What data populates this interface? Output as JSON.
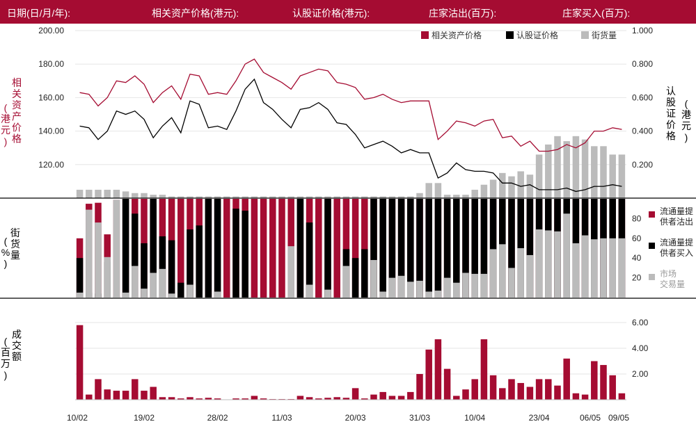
{
  "header": {
    "date_label": "日期(日/月/年):",
    "underlying_label": "相关资产价格(港元):",
    "warrant_label": "认股证价格(港元):",
    "mm_sell_label": "庄家沽出(百万):",
    "mm_buy_label": "庄家买入(百万):"
  },
  "legend": {
    "underlying": "相关资产价格",
    "warrant": "认股证价格",
    "street": "街货量"
  },
  "colors": {
    "underlying": "#a50c32",
    "warrant": "#000000",
    "street": "#bbbbbb",
    "header_bg": "#a50c32"
  },
  "chart_data": [
    {
      "type": "line",
      "left_axis_label": "相关资产价格 (港元)",
      "right_axis_label": "认股证价格 (港元)",
      "left_ticks": [
        "120.00",
        "140.00",
        "160.00",
        "180.00",
        "200.00"
      ],
      "right_ticks": [
        "0.200",
        "0.400",
        "0.600",
        "0.800",
        "1.000"
      ],
      "left_ylim": [
        100,
        200
      ],
      "right_ylim": [
        0,
        1.0
      ],
      "x_ticks": [
        "10/02",
        "19/02",
        "28/02",
        "11/03",
        "20/03",
        "31/03",
        "10/04",
        "23/04",
        "06/05",
        "09/05"
      ],
      "series": [
        {
          "name": "相关资产价格",
          "axis": "left",
          "values": [
            163,
            162,
            155,
            160,
            170,
            169,
            173,
            168,
            157,
            163,
            167,
            159,
            174,
            173,
            162,
            163,
            162,
            170,
            180,
            183,
            175,
            172,
            169,
            165,
            173,
            175,
            177,
            176,
            169,
            168,
            166,
            159,
            160,
            162,
            159,
            157,
            158,
            158,
            158,
            135,
            140,
            146,
            145,
            143,
            146,
            147,
            136,
            137,
            131,
            134,
            128,
            128,
            129,
            132,
            130,
            133,
            140,
            140,
            142,
            141
          ]
        },
        {
          "name": "认股证价格",
          "axis": "right",
          "values": [
            0.43,
            0.42,
            0.35,
            0.4,
            0.52,
            0.5,
            0.52,
            0.47,
            0.36,
            0.43,
            0.48,
            0.39,
            0.58,
            0.56,
            0.42,
            0.43,
            0.41,
            0.52,
            0.65,
            0.71,
            0.57,
            0.53,
            0.47,
            0.42,
            0.53,
            0.54,
            0.57,
            0.53,
            0.45,
            0.44,
            0.38,
            0.3,
            0.32,
            0.34,
            0.31,
            0.27,
            0.29,
            0.27,
            0.27,
            0.12,
            0.15,
            0.21,
            0.17,
            0.16,
            0.16,
            0.15,
            0.09,
            0.09,
            0.07,
            0.08,
            0.05,
            0.05,
            0.05,
            0.06,
            0.04,
            0.05,
            0.07,
            0.07,
            0.08,
            0.07
          ]
        },
        {
          "name": "街货量",
          "axis": "right",
          "values": [
            0.05,
            0.05,
            0.05,
            0.05,
            0.05,
            0.04,
            0.03,
            0.03,
            0.02,
            0.02,
            0.01,
            0.01,
            0.01,
            0.01,
            0.01,
            0.01,
            0.01,
            0.01,
            0.01,
            0.01,
            0.01,
            0.01,
            0.01,
            0.01,
            0.01,
            0.01,
            0.01,
            0.01,
            0.01,
            0.01,
            0.01,
            0.01,
            0.01,
            0.01,
            0.01,
            0.01,
            0.01,
            0.03,
            0.09,
            0.09,
            0.02,
            0.02,
            0.02,
            0.05,
            0.08,
            0.11,
            0.15,
            0.13,
            0.16,
            0.14,
            0.26,
            0.32,
            0.37,
            0.34,
            0.37,
            0.35,
            0.31,
            0.31,
            0.26,
            0.26
          ]
        }
      ]
    },
    {
      "type": "bar",
      "stacked": true,
      "left_axis_label": "街货量 (%)",
      "right_ticks": [
        "20",
        "40",
        "60",
        "80"
      ],
      "ylim": [
        0,
        100
      ],
      "series": [
        {
          "name": "流通量提供者沽出",
          "values": [
            60,
            95,
            96,
            64,
            99,
            100,
            100,
            100,
            95,
            100,
            100,
            100,
            100,
            100,
            100,
            100,
            100,
            100,
            100,
            100,
            100,
            100,
            100,
            100,
            100,
            100,
            100,
            100,
            100,
            100,
            100,
            100,
            100,
            100,
            100,
            100,
            100,
            100,
            100,
            100,
            100,
            100,
            100,
            100,
            100,
            100,
            100,
            100,
            100,
            100,
            100,
            100,
            100,
            100,
            100,
            100,
            100,
            100,
            100,
            100
          ]
        },
        {
          "name": "流通量提供者买入",
          "values": [
            40,
            5,
            4,
            36,
            1,
            100,
            85,
            55,
            100,
            62,
            58,
            15,
            69,
            73,
            100,
            100,
            0,
            90,
            88,
            0,
            0,
            0,
            0,
            0,
            100,
            76,
            0,
            100,
            0,
            49,
            40,
            49,
            100,
            100,
            100,
            100,
            100,
            100,
            100,
            100,
            100,
            100,
            100,
            100,
            100,
            100,
            100,
            100,
            100,
            100,
            100,
            100,
            100,
            100,
            100,
            100,
            100,
            100,
            100,
            100
          ]
        },
        {
          "name": "市场交易量",
          "values": [
            5,
            89,
            76,
            41,
            99,
            5,
            32,
            9,
            25,
            29,
            4,
            0,
            13,
            0,
            0,
            6,
            0,
            0,
            0,
            0,
            0,
            0,
            0,
            52,
            0,
            13,
            0,
            8,
            0,
            32,
            0,
            0,
            38,
            6,
            20,
            22,
            16,
            17,
            6,
            7,
            20,
            15,
            25,
            24,
            24,
            49,
            54,
            30,
            50,
            43,
            69,
            68,
            67,
            85,
            55,
            63,
            59,
            60,
            60,
            60
          ]
        }
      ],
      "legend": [
        "流通量提供者沽出",
        "流通量提供者买入",
        "市场交易量"
      ],
      "legend_display": [
        [
          "流通量提",
          "供者沽出"
        ],
        [
          "流通量提",
          "供者买入"
        ],
        [
          "市场",
          "交易量"
        ]
      ]
    },
    {
      "type": "bar",
      "left_axis_label": "成交额 (百万)",
      "right_ticks": [
        "2.00",
        "4.00",
        "6.00"
      ],
      "ylim": [
        0,
        6.0
      ],
      "values": [
        5.8,
        0.4,
        1.6,
        0.8,
        0.7,
        0.7,
        1.6,
        0.7,
        1.0,
        0.2,
        0.2,
        0.1,
        0.2,
        0.1,
        0.15,
        0.1,
        0.0,
        0.1,
        0.1,
        0.3,
        0.1,
        0.05,
        0.05,
        0.05,
        0.3,
        0.2,
        0.1,
        0.15,
        0.2,
        0.15,
        0.9,
        0.1,
        0.4,
        0.6,
        0.3,
        0.3,
        0.6,
        2.0,
        3.9,
        4.7,
        2.4,
        0.3,
        0.8,
        1.6,
        4.7,
        1.9,
        0.9,
        1.6,
        1.3,
        1.0,
        1.6,
        1.6,
        1.1,
        3.2,
        0.5,
        0.4,
        3.0,
        2.7,
        1.9,
        0.5
      ]
    }
  ]
}
